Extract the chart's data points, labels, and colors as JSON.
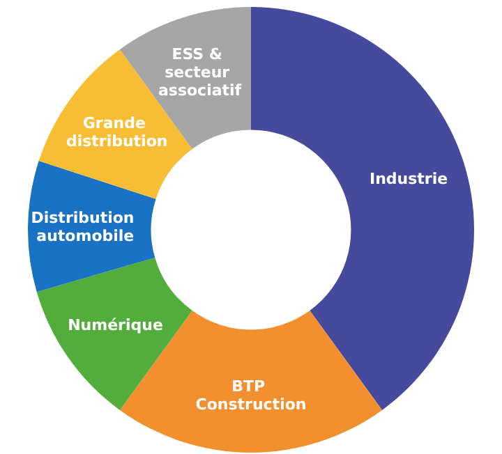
{
  "chart_data": {
    "type": "donut",
    "categories": [
      "Industrie",
      "BTP Construction",
      "Numérique",
      "Distribution automobile",
      "Grande distribution",
      "ESS & secteur associatif"
    ],
    "values": [
      40,
      20,
      10.5,
      9.5,
      10,
      10
    ],
    "colors": [
      "#464a9c",
      "#f28f2f",
      "#53ad3c",
      "#1a72c4",
      "#f7be35",
      "#a6a6a6"
    ],
    "legend": false
  }
}
